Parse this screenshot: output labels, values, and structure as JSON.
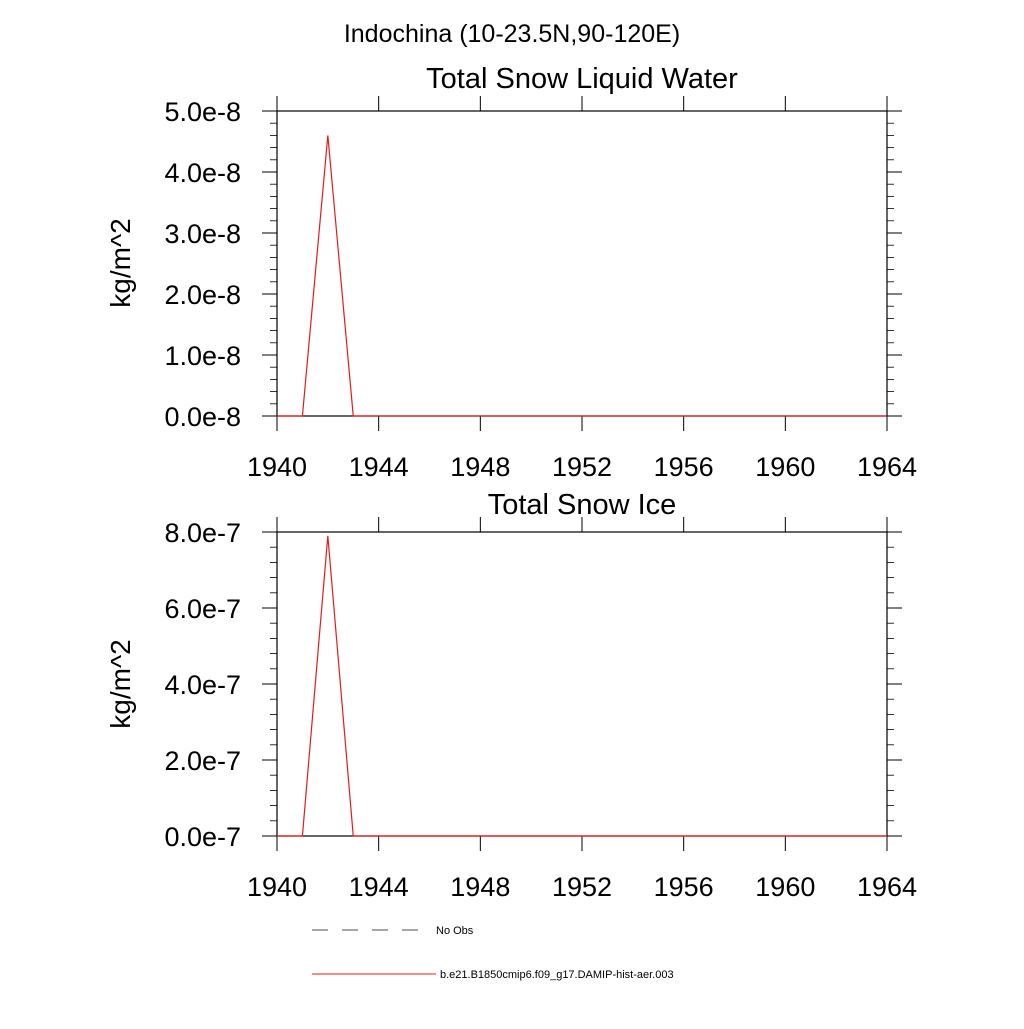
{
  "title": "Indochina (10-23.5N,90-120E)",
  "colors": {
    "axis": "#000000",
    "series_model": "#e41a1c",
    "series_obs": "#4d4d4d"
  },
  "chart_data": [
    {
      "type": "line",
      "title": "Total Snow Liquid Water",
      "xlabel": "",
      "ylabel": "kg/m^2",
      "xlim": [
        1940,
        1964
      ],
      "ylim": [
        0,
        5e-08
      ],
      "x_ticks": [
        1940,
        1944,
        1948,
        1952,
        1956,
        1960,
        1964
      ],
      "x_tick_labels": [
        "1940",
        "1944",
        "1948",
        "1952",
        "1956",
        "1960",
        "1964"
      ],
      "y_ticks": [
        0,
        1e-08,
        2e-08,
        3e-08,
        4e-08,
        5e-08
      ],
      "y_tick_labels": [
        "0.0e-8",
        "1.0e-8",
        "2.0e-8",
        "3.0e-8",
        "4.0e-8",
        "5.0e-8"
      ],
      "grid": false,
      "series": [
        {
          "name": "b.e21.B1850cmip6.f09_g17.DAMIP-hist-aer.003",
          "x": [
            1940,
            1941,
            1942,
            1943,
            1944,
            1945,
            1946,
            1947,
            1948,
            1949,
            1950,
            1951,
            1952,
            1953,
            1954,
            1955,
            1956,
            1957,
            1958,
            1959,
            1960,
            1961,
            1962,
            1963,
            1964
          ],
          "values": [
            0,
            0,
            4.6e-08,
            0,
            0,
            0,
            0,
            0,
            0,
            0,
            0,
            0,
            0,
            0,
            0,
            0,
            0,
            0,
            0,
            0,
            0,
            0,
            0,
            0,
            0
          ]
        }
      ]
    },
    {
      "type": "line",
      "title": "Total Snow Ice",
      "xlabel": "",
      "ylabel": "kg/m^2",
      "xlim": [
        1940,
        1964
      ],
      "ylim": [
        0,
        8e-07
      ],
      "x_ticks": [
        1940,
        1944,
        1948,
        1952,
        1956,
        1960,
        1964
      ],
      "x_tick_labels": [
        "1940",
        "1944",
        "1948",
        "1952",
        "1956",
        "1960",
        "1964"
      ],
      "y_ticks": [
        0,
        2e-07,
        4e-07,
        6e-07,
        8e-07
      ],
      "y_tick_labels": [
        "0.0e-7",
        "2.0e-7",
        "4.0e-7",
        "6.0e-7",
        "8.0e-7"
      ],
      "grid": false,
      "series": [
        {
          "name": "b.e21.B1850cmip6.f09_g17.DAMIP-hist-aer.003",
          "x": [
            1940,
            1941,
            1942,
            1943,
            1944,
            1945,
            1946,
            1947,
            1948,
            1949,
            1950,
            1951,
            1952,
            1953,
            1954,
            1955,
            1956,
            1957,
            1958,
            1959,
            1960,
            1961,
            1962,
            1963,
            1964
          ],
          "values": [
            0,
            0,
            7.9e-07,
            0,
            0,
            0,
            0,
            0,
            0,
            0,
            0,
            0,
            0,
            0,
            0,
            0,
            0,
            0,
            0,
            0,
            0,
            0,
            0,
            0,
            0
          ]
        }
      ]
    }
  ],
  "legend": {
    "placement": "bottom",
    "items": [
      {
        "label": "No Obs",
        "style": "dashed"
      },
      {
        "label": "b.e21.B1850cmip6.f09_g17.DAMIP-hist-aer.003",
        "style": "solid"
      }
    ]
  }
}
